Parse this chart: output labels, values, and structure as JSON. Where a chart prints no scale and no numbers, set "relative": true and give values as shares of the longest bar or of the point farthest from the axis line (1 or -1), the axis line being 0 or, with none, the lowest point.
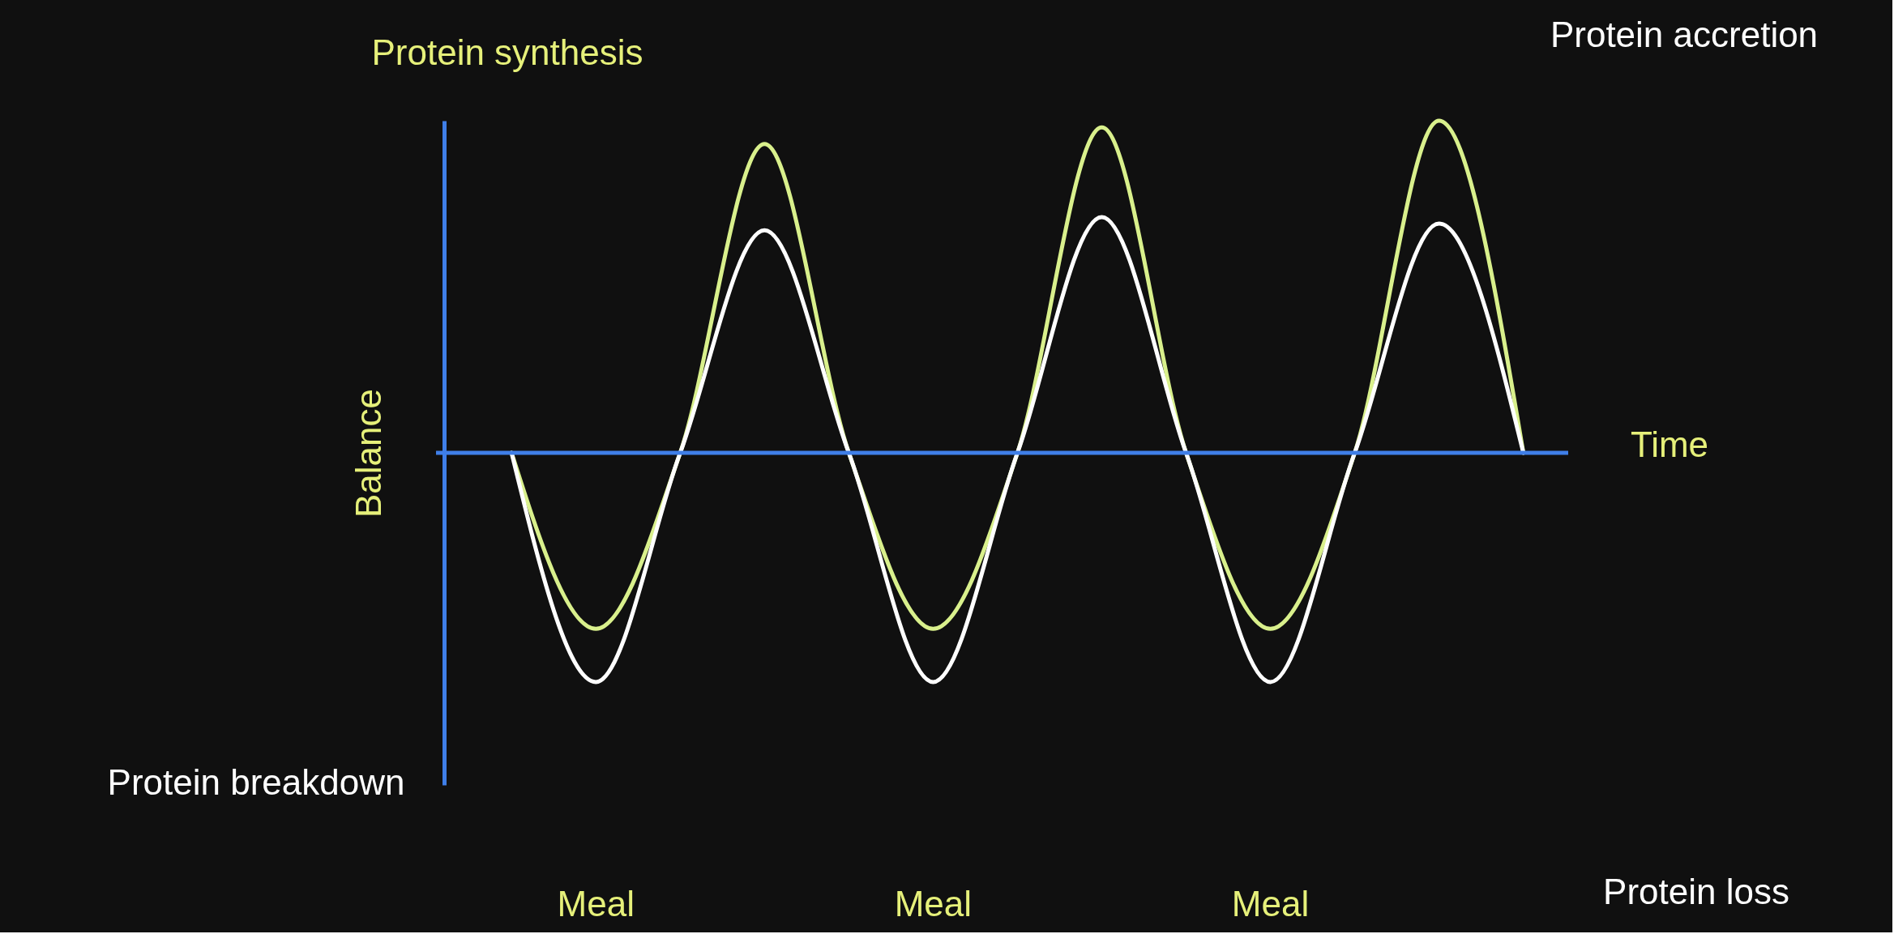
{
  "chart_data": {
    "type": "line",
    "relative": true,
    "xlabel": "Time",
    "ylabel": "Balance",
    "categories": [
      null,
      null,
      null,
      null,
      null,
      null,
      null,
      null,
      null,
      null,
      null,
      null,
      null
    ],
    "series": [
      {
        "name": "Protein synthesis",
        "color": "#d9f08c",
        "values": [
          0,
          -0.53,
          0,
          0.93,
          0,
          -0.53,
          0,
          0.98,
          0,
          -0.53,
          0,
          1.0,
          0
        ]
      },
      {
        "name": "Protein breakdown",
        "color": "#ffffff",
        "values": [
          0,
          -0.69,
          0,
          0.67,
          0,
          -0.69,
          0,
          0.71,
          0,
          -0.69,
          0,
          0.69,
          0
        ]
      }
    ],
    "annotations": [
      "Meal",
      "Meal",
      "Meal",
      "Protein accretion",
      "Protein loss"
    ],
    "ref_lines": [
      {
        "axis": "y",
        "value": 0,
        "color": "#3f7fe8"
      }
    ],
    "legend": false,
    "grid": false,
    "marker": "none",
    "line_style": "solid"
  }
}
